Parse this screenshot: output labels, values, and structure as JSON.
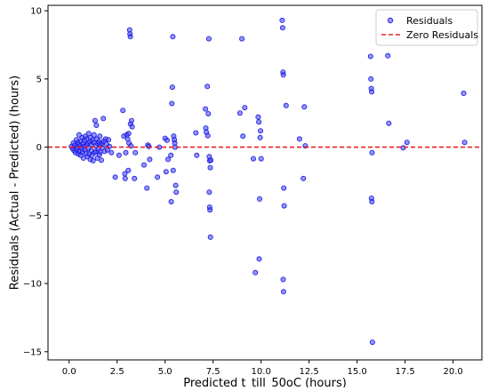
{
  "chart_data": {
    "type": "scatter",
    "title": "",
    "xlabel": "Predicted t_till_50oC (hours)",
    "ylabel": "Residuals (Actual - Predicted) (hours)",
    "xlim": [
      -1.1,
      21.5
    ],
    "ylim": [
      -15.6,
      10.4
    ],
    "xticks": [
      0.0,
      2.5,
      5.0,
      7.5,
      10.0,
      12.5,
      15.0,
      17.5,
      20.0
    ],
    "xtick_labels": [
      "0.0",
      "2.5",
      "5.0",
      "7.5",
      "10.0",
      "12.5",
      "15.0",
      "17.5",
      "20.0"
    ],
    "yticks": [
      -15,
      -10,
      -5,
      0,
      5,
      10
    ],
    "ytick_labels": [
      "−15",
      "−10",
      "−5",
      "0",
      "5",
      "10"
    ],
    "grid": false,
    "legend_position": "top-right",
    "colors": {
      "points": "#3b3bff",
      "points_edge": "#1a1ad6",
      "zero_line": "#e8212a"
    },
    "zero_line": {
      "name": "Zero Residuals",
      "y": 0
    },
    "series": [
      {
        "name": "Residuals",
        "points": [
          [
            0.12,
            0.05
          ],
          [
            0.18,
            -0.1
          ],
          [
            0.22,
            0.3
          ],
          [
            0.25,
            -0.25
          ],
          [
            0.3,
            0.15
          ],
          [
            0.33,
            -0.4
          ],
          [
            0.38,
            0.55
          ],
          [
            0.4,
            0.0
          ],
          [
            0.42,
            -0.15
          ],
          [
            0.45,
            0.35
          ],
          [
            0.48,
            -0.5
          ],
          [
            0.5,
            0.2
          ],
          [
            0.52,
            0.9
          ],
          [
            0.55,
            -0.3
          ],
          [
            0.58,
            0.1
          ],
          [
            0.6,
            -0.6
          ],
          [
            0.62,
            0.45
          ],
          [
            0.65,
            -0.05
          ],
          [
            0.68,
            0.7
          ],
          [
            0.7,
            -0.35
          ],
          [
            0.72,
            0.25
          ],
          [
            0.75,
            -0.8
          ],
          [
            0.78,
            0.05
          ],
          [
            0.8,
            0.5
          ],
          [
            0.82,
            -0.2
          ],
          [
            0.85,
            0.8
          ],
          [
            0.88,
            -0.45
          ],
          [
            0.9,
            0.15
          ],
          [
            0.92,
            0.6
          ],
          [
            0.95,
            -0.7
          ],
          [
            0.98,
            0.3
          ],
          [
            1.0,
            -0.1
          ],
          [
            1.02,
            1.0
          ],
          [
            1.05,
            -0.5
          ],
          [
            1.08,
            0.4
          ],
          [
            1.1,
            -0.9
          ],
          [
            1.12,
            0.7
          ],
          [
            1.15,
            -0.25
          ],
          [
            1.18,
            0.2
          ],
          [
            1.2,
            -0.6
          ],
          [
            1.22,
            0.55
          ],
          [
            1.25,
            -1.0
          ],
          [
            1.28,
            0.35
          ],
          [
            1.3,
            0.9
          ],
          [
            1.32,
            -0.4
          ],
          [
            1.35,
            1.95
          ],
          [
            1.38,
            0.1
          ],
          [
            1.4,
            -0.3
          ],
          [
            1.42,
            1.6
          ],
          [
            1.45,
            0.6
          ],
          [
            1.48,
            -0.8
          ],
          [
            1.5,
            0.25
          ],
          [
            1.52,
            -0.15
          ],
          [
            1.55,
            0.4
          ],
          [
            1.58,
            -0.55
          ],
          [
            1.6,
            0.8
          ],
          [
            1.62,
            -0.35
          ],
          [
            1.65,
            0.15
          ],
          [
            1.68,
            -0.95
          ],
          [
            1.7,
            0.3
          ],
          [
            1.72,
            -0.05
          ],
          [
            1.78,
            2.1
          ],
          [
            1.8,
            0.45
          ],
          [
            1.85,
            -0.3
          ],
          [
            1.9,
            0.6
          ],
          [
            1.95,
            0.2
          ],
          [
            2.0,
            -0.2
          ],
          [
            2.05,
            0.55
          ],
          [
            2.1,
            0.05
          ],
          [
            2.2,
            -0.4
          ],
          [
            2.4,
            -2.2
          ],
          [
            2.6,
            -0.6
          ],
          [
            2.8,
            2.7
          ],
          [
            2.85,
            0.8
          ],
          [
            2.9,
            -1.95
          ],
          [
            2.92,
            -2.3
          ],
          [
            2.95,
            -0.4
          ],
          [
            3.0,
            0.9
          ],
          [
            3.05,
            0.6
          ],
          [
            3.08,
            -1.7
          ],
          [
            3.1,
            1.0
          ],
          [
            3.12,
            0.3
          ],
          [
            3.15,
            8.6
          ],
          [
            3.17,
            8.3
          ],
          [
            3.19,
            8.1
          ],
          [
            3.2,
            1.7
          ],
          [
            3.22,
            0.1
          ],
          [
            3.25,
            1.95
          ],
          [
            3.28,
            1.5
          ],
          [
            3.4,
            -2.3
          ],
          [
            3.45,
            -0.4
          ],
          [
            3.9,
            -1.3
          ],
          [
            4.05,
            -3.0
          ],
          [
            4.1,
            0.15
          ],
          [
            4.15,
            0.05
          ],
          [
            4.2,
            -0.9
          ],
          [
            4.6,
            -2.2
          ],
          [
            4.7,
            0.0
          ],
          [
            5.0,
            0.65
          ],
          [
            5.05,
            -1.8
          ],
          [
            5.1,
            0.5
          ],
          [
            5.15,
            -0.9
          ],
          [
            5.3,
            -0.6
          ],
          [
            5.32,
            -4.0
          ],
          [
            5.35,
            3.2
          ],
          [
            5.38,
            4.4
          ],
          [
            5.4,
            8.1
          ],
          [
            5.42,
            -1.7
          ],
          [
            5.45,
            0.8
          ],
          [
            5.48,
            0.55
          ],
          [
            5.5,
            0.3
          ],
          [
            5.52,
            0.0
          ],
          [
            5.55,
            -2.8
          ],
          [
            5.58,
            -3.3
          ],
          [
            6.6,
            1.05
          ],
          [
            6.65,
            -0.6
          ],
          [
            7.1,
            2.8
          ],
          [
            7.12,
            1.4
          ],
          [
            7.15,
            1.1
          ],
          [
            7.2,
            4.45
          ],
          [
            7.22,
            0.85
          ],
          [
            7.25,
            2.45
          ],
          [
            7.28,
            7.95
          ],
          [
            7.3,
            -0.7
          ],
          [
            7.32,
            -1.0
          ],
          [
            7.35,
            -1.5
          ],
          [
            7.3,
            -3.3
          ],
          [
            7.32,
            -4.4
          ],
          [
            7.34,
            -4.6
          ],
          [
            7.36,
            -6.6
          ],
          [
            7.38,
            -0.95
          ],
          [
            8.9,
            2.5
          ],
          [
            9.0,
            7.95
          ],
          [
            9.05,
            0.8
          ],
          [
            9.15,
            2.9
          ],
          [
            9.6,
            -0.85
          ],
          [
            9.7,
            -9.2
          ],
          [
            9.85,
            2.2
          ],
          [
            9.88,
            1.85
          ],
          [
            9.9,
            -8.2
          ],
          [
            9.92,
            -3.8
          ],
          [
            9.95,
            0.7
          ],
          [
            9.97,
            1.2
          ],
          [
            10.0,
            -0.85
          ],
          [
            11.1,
            9.3
          ],
          [
            11.12,
            8.75
          ],
          [
            11.14,
            5.5
          ],
          [
            11.16,
            5.3
          ],
          [
            11.18,
            -3.0
          ],
          [
            11.2,
            -4.3
          ],
          [
            11.15,
            -9.7
          ],
          [
            11.17,
            -10.6
          ],
          [
            11.3,
            3.05
          ],
          [
            12.0,
            0.6
          ],
          [
            12.2,
            -2.3
          ],
          [
            12.25,
            2.95
          ],
          [
            12.3,
            0.1
          ],
          [
            15.7,
            6.65
          ],
          [
            15.72,
            5.0
          ],
          [
            15.74,
            4.3
          ],
          [
            15.76,
            4.05
          ],
          [
            15.78,
            -0.4
          ],
          [
            15.75,
            -3.75
          ],
          [
            15.77,
            -4.0
          ],
          [
            15.8,
            -14.3
          ],
          [
            16.6,
            6.7
          ],
          [
            16.65,
            1.75
          ],
          [
            17.4,
            -0.05
          ],
          [
            17.6,
            0.35
          ],
          [
            20.55,
            3.95
          ],
          [
            20.6,
            0.35
          ]
        ]
      }
    ]
  }
}
